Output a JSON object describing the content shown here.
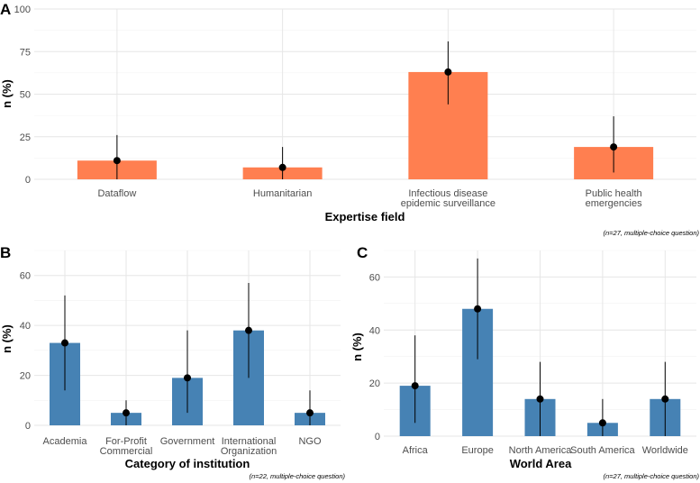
{
  "chart_data": [
    {
      "panel": "A",
      "type": "bar",
      "color": "#FF7F50",
      "categories": [
        "Dataflow",
        "Humanitarian",
        "Infectious disease\nepidemic surveillance",
        "Public health\nemergencies"
      ],
      "values": [
        11,
        7,
        63,
        19
      ],
      "ci_low": [
        0,
        0,
        44,
        4
      ],
      "ci_high": [
        26,
        19,
        81,
        37
      ],
      "ylim": [
        0,
        100
      ],
      "yticks": [
        0,
        25,
        50,
        75,
        100
      ],
      "xlabel": "Expertise field",
      "ylabel": "n (%)",
      "caption": "(n=27, multiple-choice question)"
    },
    {
      "panel": "B",
      "type": "bar",
      "color": "#4682B4",
      "categories": [
        "Academia",
        "For-Profit\nCommercial",
        "Government",
        "International\nOrganization",
        "NGO"
      ],
      "values": [
        33,
        5,
        19,
        38,
        5
      ],
      "ci_low": [
        14,
        0,
        5,
        19,
        0
      ],
      "ci_high": [
        52,
        10,
        38,
        57,
        14
      ],
      "ylim": [
        0,
        70
      ],
      "yticks": [
        0,
        20,
        40,
        60
      ],
      "xlabel": "Category of institution",
      "ylabel": "n (%)",
      "caption": "(n=22, multiple-choice question)"
    },
    {
      "panel": "C",
      "type": "bar",
      "color": "#4682B4",
      "categories": [
        "Africa",
        "Europe",
        "North America",
        "South America",
        "Worldwide"
      ],
      "values": [
        19,
        48,
        14,
        5,
        14
      ],
      "ci_low": [
        5,
        29,
        0,
        0,
        0
      ],
      "ci_high": [
        38,
        67,
        28,
        14,
        28
      ],
      "ylim": [
        0,
        70
      ],
      "yticks": [
        0,
        20,
        40,
        60
      ],
      "xlabel": "World Area",
      "ylabel": "n (%)",
      "caption": "(n=27, multiple-choice question)"
    }
  ]
}
